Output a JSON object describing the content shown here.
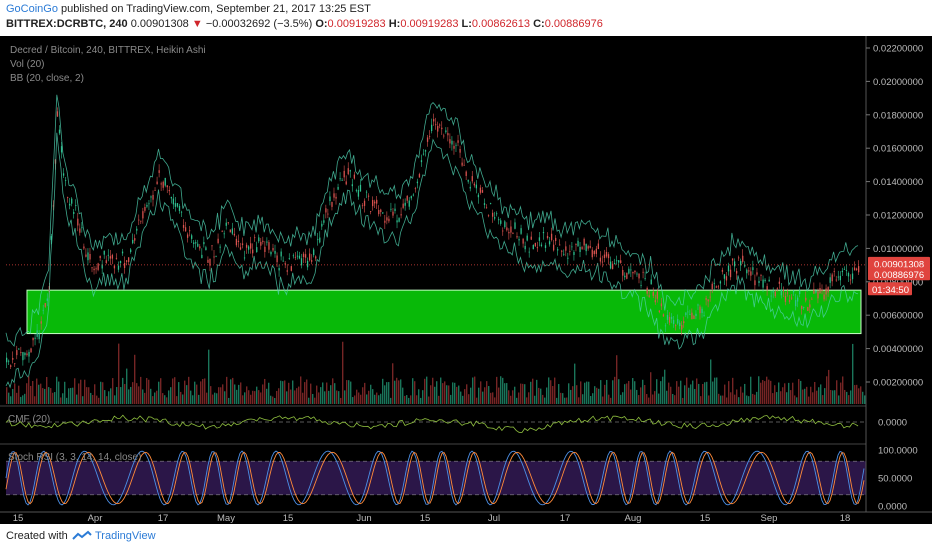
{
  "header": {
    "author": "GoCoinGo",
    "published_text": "published on TradingView.com, September 21, 2017 13:25 EST",
    "symbol": "BITTREX:DCRBTC, 240",
    "last": "0.00901308",
    "change_arrow": "▼",
    "change": "−0.00032692 (−3.5%)",
    "o_label": "O:",
    "o_value": "0.00919283",
    "h_label": "H:",
    "h_value": "0.00919283",
    "l_label": "L:",
    "l_value": "0.00862613",
    "c_label": "C:",
    "c_value": "0.00886976"
  },
  "legend": {
    "title": "Decred / Bitcoin, 240, BITTREX, Heikin Ashi",
    "vol": "Vol (20)",
    "bb": "BB (20, close, 2)",
    "cmf": "CMF (20)",
    "stoch": "Stoch RSI (3, 3, 14, 14, close)"
  },
  "price_badges": {
    "last": "0.00901308",
    "close": "0.00886976",
    "timer": "01:34:50"
  },
  "footer": {
    "created": "Created with",
    "brand": "TradingView"
  },
  "colors": {
    "background": "#000000",
    "up": "#2ec08f",
    "down": "#d9534f",
    "bb_band": "#4fd1b0",
    "support_zone": "#08b908",
    "cmf_line": "#8fbf3f",
    "stoch_k": "#4c8fe6",
    "stoch_d": "#ff8a3a",
    "stoch_band": "#2b1648",
    "badge_red": "#e0443e",
    "axis_text": "#bbbbbb"
  },
  "chart_data": {
    "type": "line",
    "title": "Decred / Bitcoin, 240, BITTREX, Heikin Ashi",
    "x_ticks": [
      "15",
      "Apr",
      "17",
      "May",
      "15",
      "Jun",
      "15",
      "Jul",
      "17",
      "Aug",
      "15",
      "Sep",
      "18"
    ],
    "y_ticks": [
      "0.02200000",
      "0.02000000",
      "0.01800000",
      "0.01600000",
      "0.01400000",
      "0.01200000",
      "0.01000000",
      "0.00800000",
      "0.00600000",
      "0.00400000",
      "0.00200000"
    ],
    "ylim": [
      0,
      0.0225
    ],
    "grid": false,
    "price_series": {
      "name": "DCRBTC",
      "x": [
        0,
        0.02,
        0.04,
        0.05,
        0.06,
        0.07,
        0.08,
        0.09,
        0.1,
        0.12,
        0.14,
        0.16,
        0.18,
        0.2,
        0.22,
        0.24,
        0.26,
        0.28,
        0.3,
        0.32,
        0.34,
        0.36,
        0.38,
        0.4,
        0.42,
        0.44,
        0.46,
        0.48,
        0.5,
        0.52,
        0.53,
        0.54,
        0.56,
        0.58,
        0.6,
        0.62,
        0.64,
        0.66,
        0.68,
        0.7,
        0.72,
        0.74,
        0.76,
        0.77,
        0.78,
        0.8,
        0.82,
        0.84,
        0.86,
        0.87,
        0.88,
        0.9,
        0.92,
        0.94,
        0.96,
        0.98,
        1.0
      ],
      "values": [
        0.0034,
        0.0036,
        0.0052,
        0.0078,
        0.018,
        0.0135,
        0.0122,
        0.0105,
        0.0087,
        0.0095,
        0.0092,
        0.012,
        0.0145,
        0.0125,
        0.0102,
        0.0095,
        0.0112,
        0.0098,
        0.0105,
        0.0092,
        0.0093,
        0.0095,
        0.0128,
        0.0145,
        0.013,
        0.0122,
        0.0118,
        0.0138,
        0.0175,
        0.0168,
        0.0158,
        0.0145,
        0.0128,
        0.0115,
        0.0108,
        0.0102,
        0.0105,
        0.0098,
        0.0102,
        0.0096,
        0.0088,
        0.0082,
        0.0074,
        0.0058,
        0.0055,
        0.006,
        0.0065,
        0.0085,
        0.0092,
        0.0088,
        0.0082,
        0.0075,
        0.0072,
        0.0068,
        0.0075,
        0.0085,
        0.0089
      ]
    },
    "support_zone": [
      0.0049,
      0.0075
    ],
    "last_price": 0.00901308,
    "close_price": 0.00886976,
    "panels": [
      {
        "name": "CMF (20)",
        "y_ticks": [
          "0.0000"
        ]
      },
      {
        "name": "Stoch RSI (3, 3, 14, 14, close)",
        "y_ticks": [
          "100.0000",
          "50.0000",
          "0.0000"
        ],
        "ylim": [
          0,
          100
        ]
      }
    ]
  }
}
